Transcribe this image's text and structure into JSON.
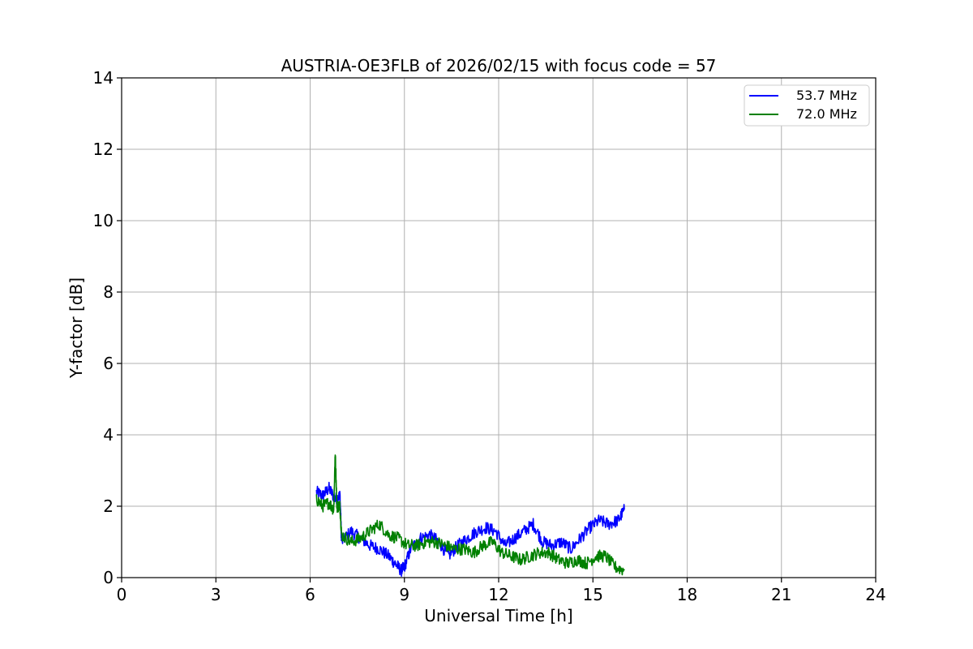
{
  "chart_data": {
    "type": "line",
    "title": "AUSTRIA-OE3FLB of 2026/02/15 with focus code = 57",
    "xlabel": "Universal Time [h]",
    "ylabel": "Y-factor [dB]",
    "xlim": [
      0,
      24
    ],
    "ylim": [
      0,
      14
    ],
    "xticks": [
      0,
      3,
      6,
      9,
      12,
      15,
      18,
      21,
      24
    ],
    "yticks": [
      0,
      2,
      4,
      6,
      8,
      10,
      12,
      14
    ],
    "grid": true,
    "legend_position": "top-right",
    "series": [
      {
        "name": "53.7 MHz",
        "color": "#0000ff",
        "points": [
          [
            6.2,
            2.4
          ],
          [
            6.4,
            2.3
          ],
          [
            6.6,
            2.5
          ],
          [
            6.8,
            2.2
          ],
          [
            6.95,
            2.3
          ],
          [
            7.0,
            1.0
          ],
          [
            7.3,
            1.3
          ],
          [
            7.6,
            1.1
          ],
          [
            7.9,
            0.9
          ],
          [
            8.2,
            0.8
          ],
          [
            8.5,
            0.6
          ],
          [
            8.7,
            0.4
          ],
          [
            8.9,
            0.2
          ],
          [
            9.0,
            0.3
          ],
          [
            9.2,
            0.8
          ],
          [
            9.5,
            1.1
          ],
          [
            9.8,
            1.2
          ],
          [
            10.1,
            1.0
          ],
          [
            10.4,
            0.6
          ],
          [
            10.7,
            0.9
          ],
          [
            11.0,
            1.1
          ],
          [
            11.3,
            1.3
          ],
          [
            11.6,
            1.4
          ],
          [
            11.9,
            1.3
          ],
          [
            12.2,
            0.9
          ],
          [
            12.5,
            1.1
          ],
          [
            12.8,
            1.3
          ],
          [
            13.1,
            1.5
          ],
          [
            13.4,
            1.0
          ],
          [
            13.7,
            0.9
          ],
          [
            14.0,
            1.0
          ],
          [
            14.3,
            0.8
          ],
          [
            14.6,
            1.1
          ],
          [
            14.9,
            1.4
          ],
          [
            15.2,
            1.6
          ],
          [
            15.5,
            1.5
          ],
          [
            15.8,
            1.6
          ],
          [
            16.0,
            1.9
          ]
        ]
      },
      {
        "name": "72.0 MHz",
        "color": "#008000",
        "points": [
          [
            6.2,
            2.2
          ],
          [
            6.4,
            2.0
          ],
          [
            6.6,
            2.1
          ],
          [
            6.75,
            1.9
          ],
          [
            6.8,
            3.5
          ],
          [
            6.85,
            2.0
          ],
          [
            6.95,
            2.0
          ],
          [
            7.0,
            1.2
          ],
          [
            7.3,
            1.0
          ],
          [
            7.6,
            1.1
          ],
          [
            7.9,
            1.3
          ],
          [
            8.2,
            1.5
          ],
          [
            8.5,
            1.2
          ],
          [
            8.8,
            1.1
          ],
          [
            9.1,
            0.9
          ],
          [
            9.4,
            0.9
          ],
          [
            9.7,
            1.0
          ],
          [
            10.0,
            1.0
          ],
          [
            10.3,
            0.9
          ],
          [
            10.6,
            0.8
          ],
          [
            10.9,
            0.8
          ],
          [
            11.2,
            0.7
          ],
          [
            11.5,
            0.9
          ],
          [
            11.8,
            1.0
          ],
          [
            12.1,
            0.7
          ],
          [
            12.4,
            0.6
          ],
          [
            12.7,
            0.5
          ],
          [
            13.0,
            0.6
          ],
          [
            13.3,
            0.7
          ],
          [
            13.6,
            0.7
          ],
          [
            13.9,
            0.5
          ],
          [
            14.2,
            0.4
          ],
          [
            14.5,
            0.5
          ],
          [
            14.8,
            0.4
          ],
          [
            15.1,
            0.6
          ],
          [
            15.4,
            0.6
          ],
          [
            15.7,
            0.3
          ],
          [
            16.0,
            0.2
          ]
        ]
      }
    ]
  }
}
